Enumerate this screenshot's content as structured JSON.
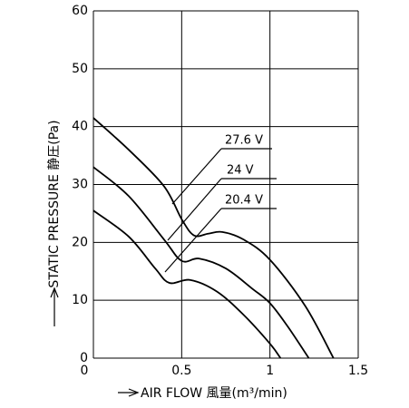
{
  "chart_data": {
    "type": "line",
    "x_label": "AIR FLOW 風量(m³/min)",
    "y_label": "STATIC PRESSURE 静圧(Pa)",
    "xlim": [
      0,
      1.5
    ],
    "xticks": [
      0,
      0.5,
      1,
      1.5
    ],
    "ylim": [
      0,
      60
    ],
    "yticks": [
      0,
      10,
      20,
      30,
      40,
      50,
      60
    ],
    "grid": true,
    "series": [
      {
        "name": "27.6 V",
        "color": "#000000",
        "x": [
          0,
          0.2,
          0.4,
          0.5,
          0.57,
          0.65,
          0.73,
          0.85,
          1.0,
          1.2,
          1.36
        ],
        "values": [
          41.5,
          36,
          29.7,
          24,
          21.2,
          21.5,
          21.8,
          20.5,
          17,
          9,
          0
        ]
      },
      {
        "name": "24 V",
        "color": "#000000",
        "x": [
          0,
          0.2,
          0.4,
          0.5,
          0.6,
          0.75,
          0.9,
          1.0,
          1.1,
          1.22
        ],
        "values": [
          33,
          28,
          20.5,
          16.8,
          17.2,
          15.5,
          12,
          9.5,
          5.5,
          0
        ]
      },
      {
        "name": "20.4 V",
        "color": "#000000",
        "x": [
          0,
          0.2,
          0.35,
          0.43,
          0.55,
          0.7,
          0.85,
          1.0,
          1.06
        ],
        "values": [
          25.5,
          21,
          15.5,
          13,
          13.5,
          11.5,
          7.5,
          2.5,
          0
        ]
      }
    ]
  }
}
